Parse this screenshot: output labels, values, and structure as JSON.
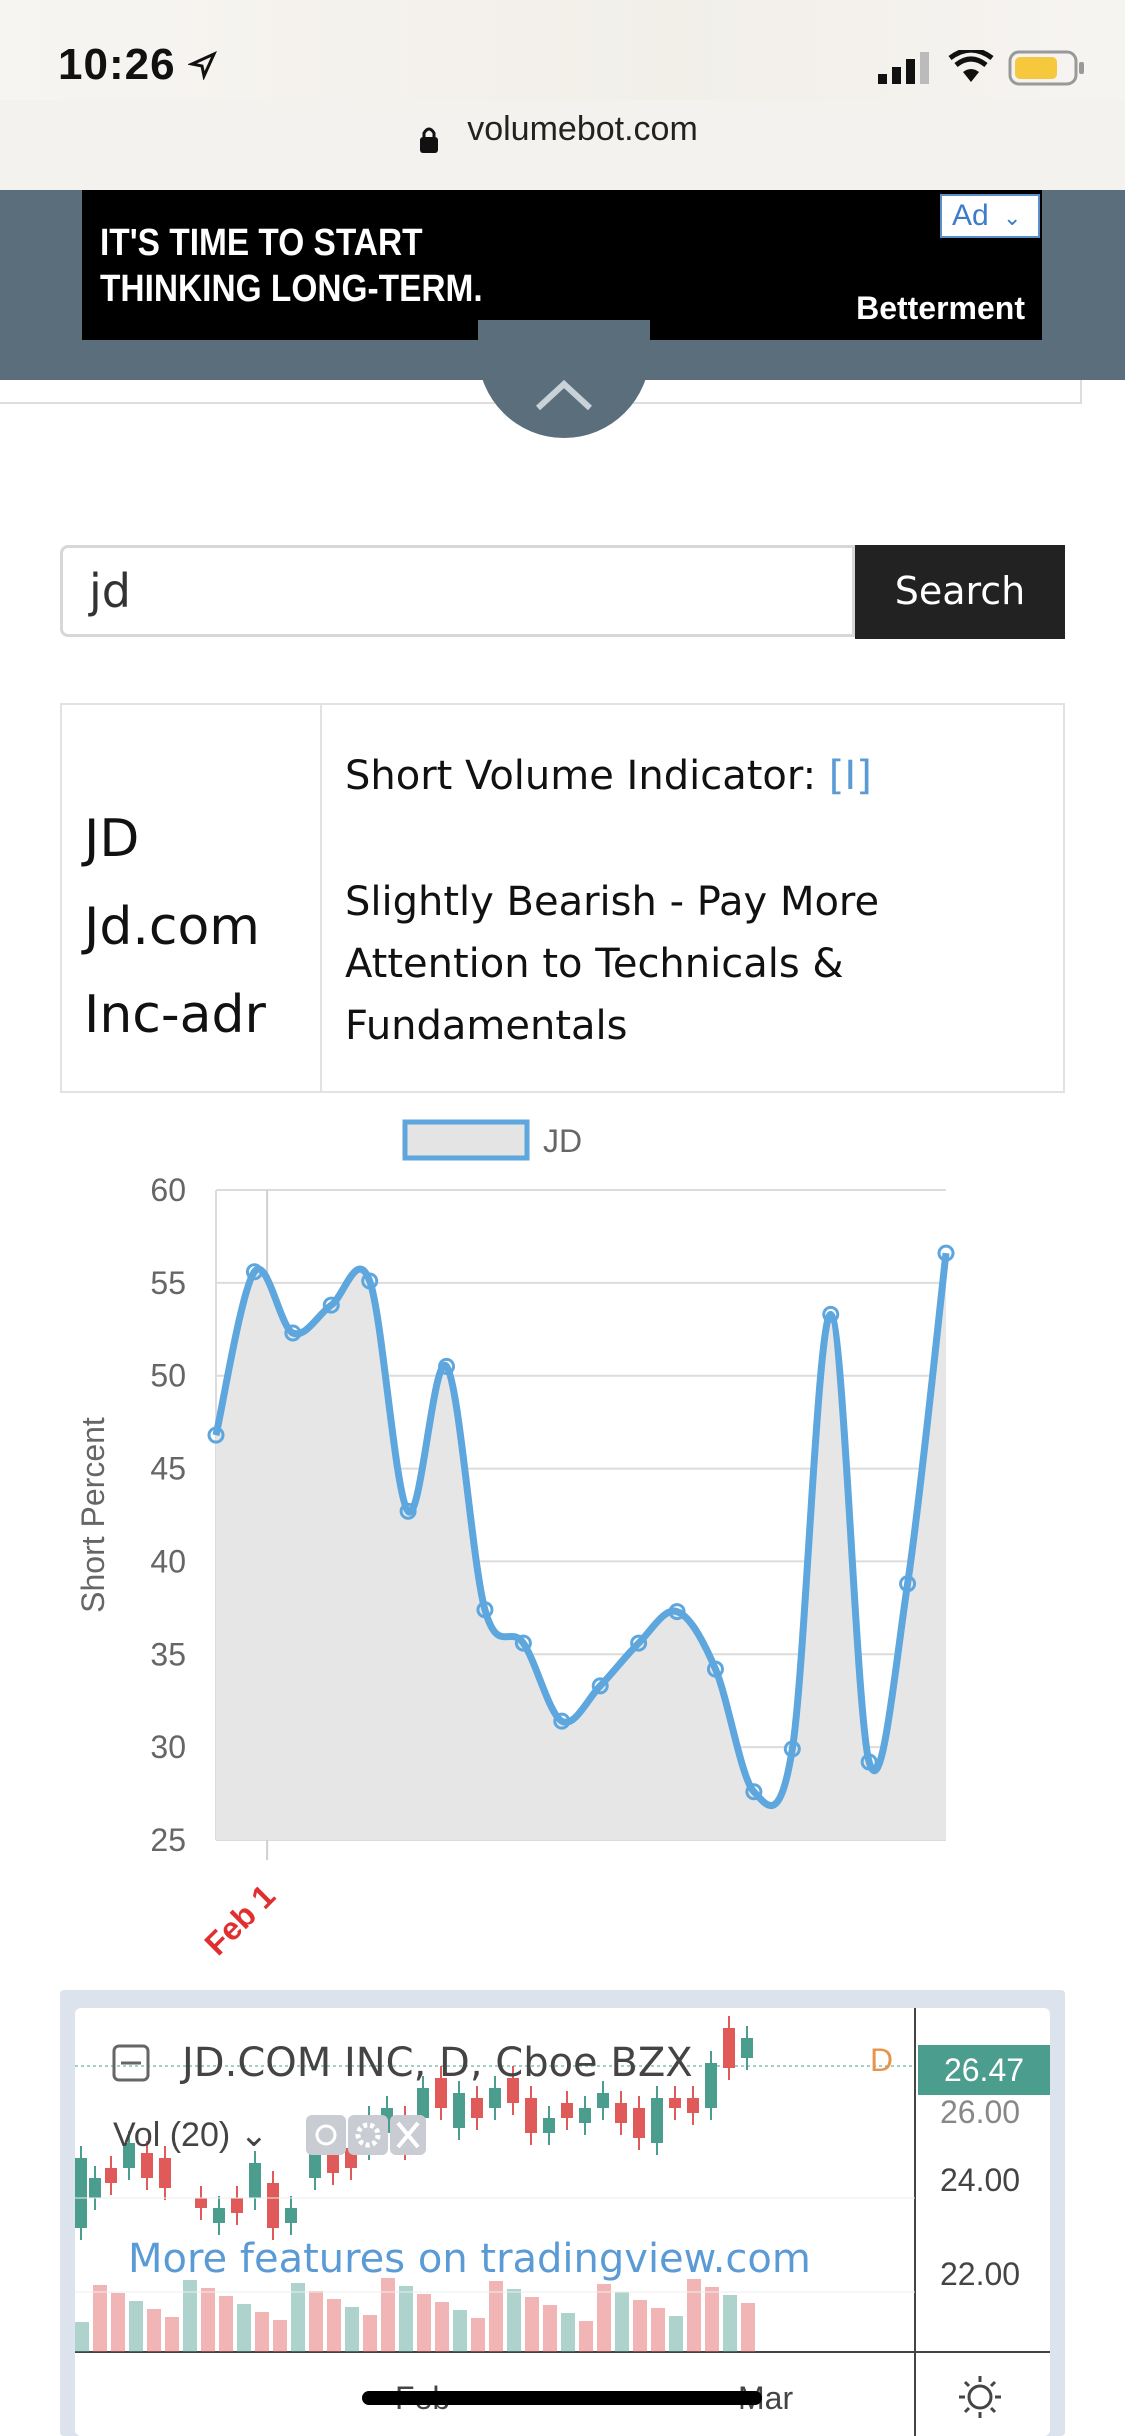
{
  "status_bar": {
    "time": "10:26"
  },
  "browser": {
    "url": "volumebot.com"
  },
  "ad": {
    "headline_line1": "IT'S TIME TO START",
    "headline_line2": "THINKING LONG-TERM.",
    "brand": "Betterment",
    "tag": "Ad"
  },
  "search": {
    "value": "jd",
    "button_label": "Search"
  },
  "result": {
    "ticker": "JD",
    "name_line1": "Jd.com",
    "name_line2": "Inc-adr",
    "indicator_label": "Short Volume Indicator:",
    "info_link": "[I]",
    "indicator_text": "Slightly Bearish - Pay More Attention to Technicals & Fundamentals"
  },
  "chart_data": {
    "type": "line",
    "legend": [
      "JD"
    ],
    "ylabel": "Short Percent",
    "ylim": [
      25,
      60
    ],
    "yticks": [
      60,
      55,
      50,
      45,
      40,
      35,
      30,
      25
    ],
    "x_tick_labels": [
      "Feb 1"
    ],
    "series": [
      {
        "name": "JD",
        "color": "#5ea6de",
        "values": [
          46.8,
          55.6,
          52.3,
          53.8,
          55.1,
          42.7,
          50.5,
          37.4,
          35.6,
          31.4,
          33.3,
          35.6,
          37.3,
          34.2,
          27.6,
          29.9,
          53.3,
          29.2,
          38.8,
          56.6
        ]
      }
    ],
    "grid": true,
    "legend_position": "top"
  },
  "tradingview": {
    "title": "JD.COM INC, D, Cboe BZX",
    "volume_label": "Vol (20)",
    "price": "26.47",
    "price_partial": "26.00",
    "y_labels": [
      "24.00",
      "22.00"
    ],
    "x_labels": [
      "Feb",
      "Mar"
    ],
    "interval": "D",
    "more_link": "More features on tradingview.com",
    "colors": {
      "up": "#4b9e8e",
      "down": "#e05a5a"
    }
  }
}
